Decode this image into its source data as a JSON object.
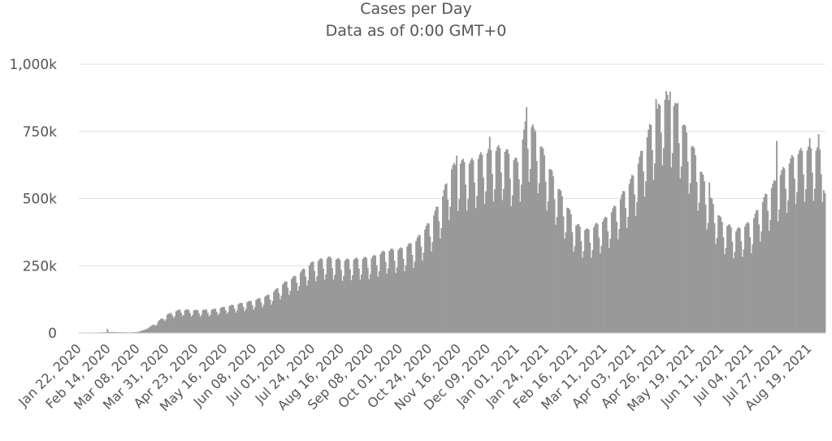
{
  "chart_data": {
    "type": "bar",
    "title": "Cases per Day",
    "subtitle": "Data as of 0:00 GMT+0",
    "xlabel": "",
    "ylabel": "",
    "grid": true,
    "legend": "none",
    "bar_color": "#999999",
    "grid_color": "#e0e0e0",
    "start_date": "2020-01-22",
    "end_date": "2021-08-31",
    "ylim": [
      0,
      1000000
    ],
    "y_ticks": [
      {
        "value": 0,
        "label": "0"
      },
      {
        "value": 250000,
        "label": "250k"
      },
      {
        "value": 500000,
        "label": "500k"
      },
      {
        "value": 750000,
        "label": "750k"
      },
      {
        "value": 1000000,
        "label": "1,000k"
      }
    ],
    "x_tick_labels": [
      {
        "date": "2020-01-22",
        "label": "Jan 22, 2020"
      },
      {
        "date": "2020-02-14",
        "label": "Feb 14, 2020"
      },
      {
        "date": "2020-03-08",
        "label": "Mar 08, 2020"
      },
      {
        "date": "2020-03-31",
        "label": "Mar 31, 2020"
      },
      {
        "date": "2020-04-23",
        "label": "Apr 23, 2020"
      },
      {
        "date": "2020-05-16",
        "label": "May 16, 2020"
      },
      {
        "date": "2020-06-08",
        "label": "Jun 08, 2020"
      },
      {
        "date": "2020-07-01",
        "label": "Jul 01, 2020"
      },
      {
        "date": "2020-07-24",
        "label": "Jul 24, 2020"
      },
      {
        "date": "2020-08-16",
        "label": "Aug 16, 2020"
      },
      {
        "date": "2020-09-08",
        "label": "Sep 08, 2020"
      },
      {
        "date": "2020-10-01",
        "label": "Oct 01, 2020"
      },
      {
        "date": "2020-10-24",
        "label": "Oct 24, 2020"
      },
      {
        "date": "2020-11-16",
        "label": "Nov 16, 2020"
      },
      {
        "date": "2020-12-09",
        "label": "Dec 09, 2020"
      },
      {
        "date": "2021-01-01",
        "label": "Jan 01, 2021"
      },
      {
        "date": "2021-01-24",
        "label": "Jan 24, 2021"
      },
      {
        "date": "2021-02-16",
        "label": "Feb 16, 2021"
      },
      {
        "date": "2021-03-11",
        "label": "Mar 11, 2021"
      },
      {
        "date": "2021-04-03",
        "label": "Apr 03, 2021"
      },
      {
        "date": "2021-04-26",
        "label": "Apr 26, 2021"
      },
      {
        "date": "2021-05-19",
        "label": "May 19, 2021"
      },
      {
        "date": "2021-06-11",
        "label": "Jun 11, 2021"
      },
      {
        "date": "2021-07-04",
        "label": "Jul 04, 2021"
      },
      {
        "date": "2021-07-27",
        "label": "Jul 27, 2021"
      },
      {
        "date": "2021-08-19",
        "label": "Aug 19, 2021"
      }
    ],
    "trend_points": [
      [
        "2020-01-22",
        500
      ],
      [
        "2020-02-12",
        2500
      ],
      [
        "2020-02-13",
        15000
      ],
      [
        "2020-02-14",
        4000
      ],
      [
        "2020-03-01",
        2000
      ],
      [
        "2020-03-08",
        4000
      ],
      [
        "2020-03-15",
        15000
      ],
      [
        "2020-03-22",
        35000
      ],
      [
        "2020-03-31",
        65000
      ],
      [
        "2020-04-10",
        82000
      ],
      [
        "2020-04-23",
        80000
      ],
      [
        "2020-05-05",
        82000
      ],
      [
        "2020-05-16",
        92000
      ],
      [
        "2020-06-01",
        108000
      ],
      [
        "2020-06-08",
        115000
      ],
      [
        "2020-06-20",
        135000
      ],
      [
        "2020-07-01",
        175000
      ],
      [
        "2020-07-10",
        200000
      ],
      [
        "2020-07-24",
        250000
      ],
      [
        "2020-08-05",
        265000
      ],
      [
        "2020-08-16",
        255000
      ],
      [
        "2020-09-08",
        265000
      ],
      [
        "2020-09-20",
        290000
      ],
      [
        "2020-10-01",
        295000
      ],
      [
        "2020-10-12",
        320000
      ],
      [
        "2020-10-24",
        390000
      ],
      [
        "2020-11-02",
        470000
      ],
      [
        "2020-11-10",
        580000
      ],
      [
        "2020-11-16",
        600000
      ],
      [
        "2020-11-25",
        600000
      ],
      [
        "2020-12-09",
        640000
      ],
      [
        "2020-12-20",
        650000
      ],
      [
        "2021-01-01",
        600000
      ],
      [
        "2021-01-08",
        750000
      ],
      [
        "2021-01-14",
        720000
      ],
      [
        "2021-01-24",
        600000
      ],
      [
        "2021-02-05",
        480000
      ],
      [
        "2021-02-16",
        380000
      ],
      [
        "2021-02-25",
        360000
      ],
      [
        "2021-03-11",
        400000
      ],
      [
        "2021-03-20",
        450000
      ],
      [
        "2021-04-03",
        560000
      ],
      [
        "2021-04-15",
        720000
      ],
      [
        "2021-04-26",
        830000
      ],
      [
        "2021-05-05",
        800000
      ],
      [
        "2021-05-19",
        650000
      ],
      [
        "2021-06-01",
        480000
      ],
      [
        "2021-06-11",
        390000
      ],
      [
        "2021-06-22",
        360000
      ],
      [
        "2021-07-04",
        390000
      ],
      [
        "2021-07-15",
        480000
      ],
      [
        "2021-07-27",
        560000
      ],
      [
        "2021-08-08",
        630000
      ],
      [
        "2021-08-19",
        650000
      ],
      [
        "2021-08-31",
        640000
      ]
    ],
    "weekday_factors": [
      0.76,
      0.83,
      1.05,
      1.07,
      1.08,
      1.06,
      0.92
    ],
    "highlights": [
      [
        "2020-01-22",
        500
      ],
      [
        "2020-02-13",
        15000
      ],
      [
        "2020-11-14",
        660000
      ],
      [
        "2020-12-10",
        730000
      ],
      [
        "2021-01-08",
        840000
      ],
      [
        "2021-01-14",
        760000
      ],
      [
        "2021-04-20",
        870000
      ],
      [
        "2021-04-28",
        900000
      ],
      [
        "2021-05-01",
        898000
      ],
      [
        "2021-05-07",
        856000
      ],
      [
        "2021-06-01",
        560000
      ],
      [
        "2021-07-24",
        715000
      ],
      [
        "2021-08-19",
        725000
      ],
      [
        "2021-08-26",
        740000
      ],
      [
        "2021-08-31",
        520000
      ]
    ]
  }
}
